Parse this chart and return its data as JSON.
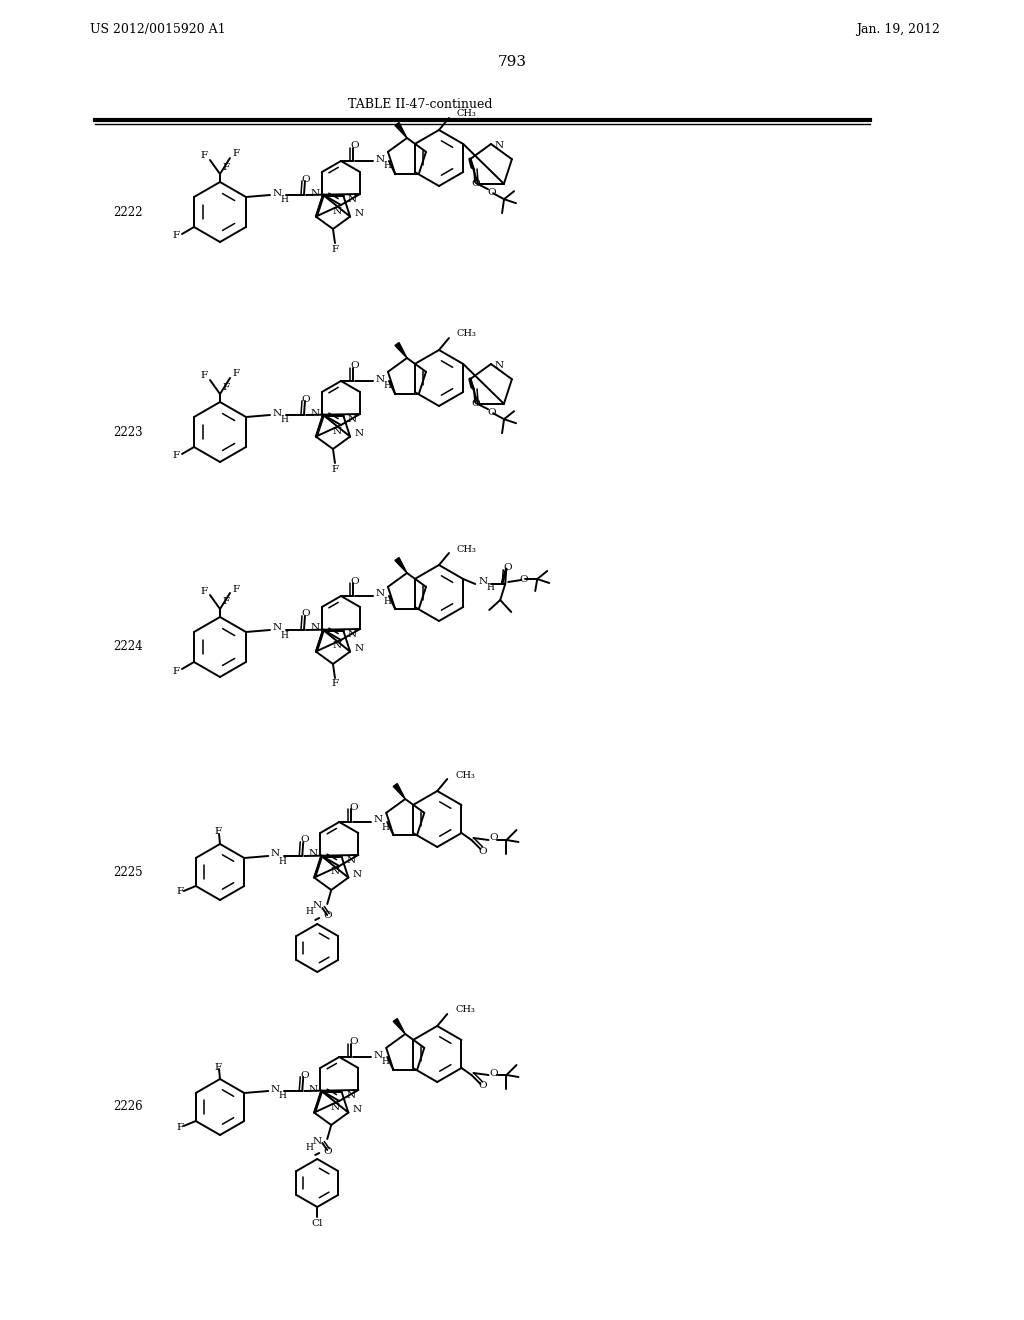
{
  "page_header_left": "US 2012/0015920 A1",
  "page_header_right": "Jan. 19, 2012",
  "page_number": "793",
  "table_title": "TABLE II-47-continued",
  "background_color": "#ffffff",
  "text_color": "#000000",
  "compound_ids": [
    "2222",
    "2223",
    "2224",
    "2225",
    "2226"
  ],
  "compound_y_positions": [
    1090,
    870,
    655,
    430,
    195
  ]
}
